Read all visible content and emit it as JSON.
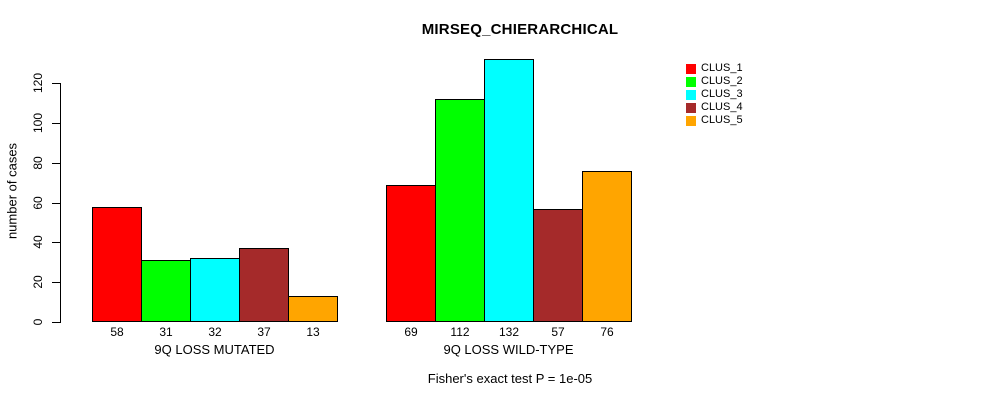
{
  "chart_data": {
    "type": "bar",
    "title": "MIRSEQ_CHIERARCHICAL",
    "ylabel": "number of cases",
    "xlabel": "",
    "caption": "Fisher's exact test P = 1e-05",
    "yticks": [
      0,
      20,
      40,
      60,
      80,
      100,
      120
    ],
    "ylim": [
      0,
      132
    ],
    "grid": false,
    "legend_position": "right-outside",
    "bar_value_labels_shown": true,
    "series": [
      {
        "name": "CLUS_1",
        "color": "#FF0000"
      },
      {
        "name": "CLUS_2",
        "color": "#00FF00"
      },
      {
        "name": "CLUS_3",
        "color": "#00FFFF"
      },
      {
        "name": "CLUS_4",
        "color": "#A52A2A"
      },
      {
        "name": "CLUS_5",
        "color": "#FFA500"
      }
    ],
    "groups": [
      {
        "label": "9Q LOSS MUTATED",
        "values": [
          58,
          31,
          32,
          37,
          13
        ]
      },
      {
        "label": "9Q LOSS WILD-TYPE",
        "values": [
          69,
          112,
          132,
          57,
          76
        ]
      }
    ]
  },
  "colors": {
    "background": "#ffffff",
    "axis": "#000000",
    "text": "#000000",
    "bar_border": "#000000"
  }
}
